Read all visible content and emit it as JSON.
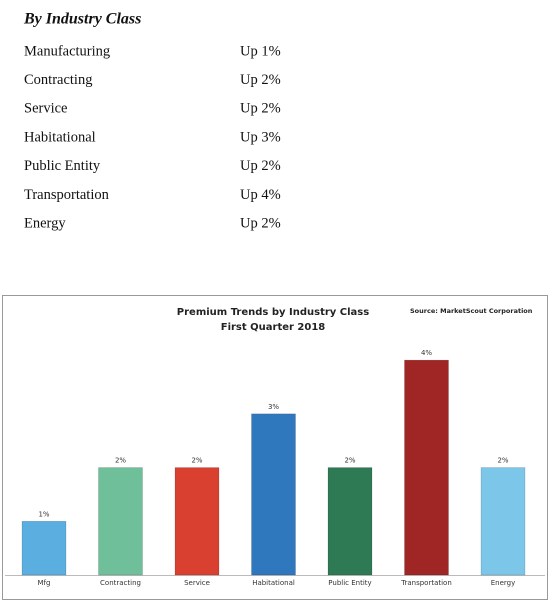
{
  "heading": "By Industry Class",
  "table": {
    "rows": [
      [
        "Manufacturing",
        "Up 1%"
      ],
      [
        "Contracting",
        "Up 2%"
      ],
      [
        "Service",
        "Up 2%"
      ],
      [
        "Habitational",
        "Up 3%"
      ],
      [
        "Public Entity",
        "Up 2%"
      ],
      [
        "Transportation",
        "Up 4%"
      ],
      [
        "Energy",
        "Up 2%"
      ]
    ]
  },
  "chart_data": {
    "type": "bar",
    "title": "Premium Trends by Industry Class",
    "subtitle": "First Quarter 2018",
    "source": "Source: MarketScout Corporation",
    "categories": [
      "Mfg",
      "Contracting",
      "Service",
      "Habitational",
      "Public Entity",
      "Transportation",
      "Energy"
    ],
    "values": [
      1,
      2,
      2,
      3,
      2,
      4,
      2
    ],
    "value_labels": [
      "1%",
      "2%",
      "2%",
      "3%",
      "2%",
      "4%",
      "2%"
    ],
    "colors": [
      "#5aaee0",
      "#6fbf9a",
      "#d9402f",
      "#2f78bd",
      "#2e7a55",
      "#a02525",
      "#7cc6ea"
    ]
  }
}
